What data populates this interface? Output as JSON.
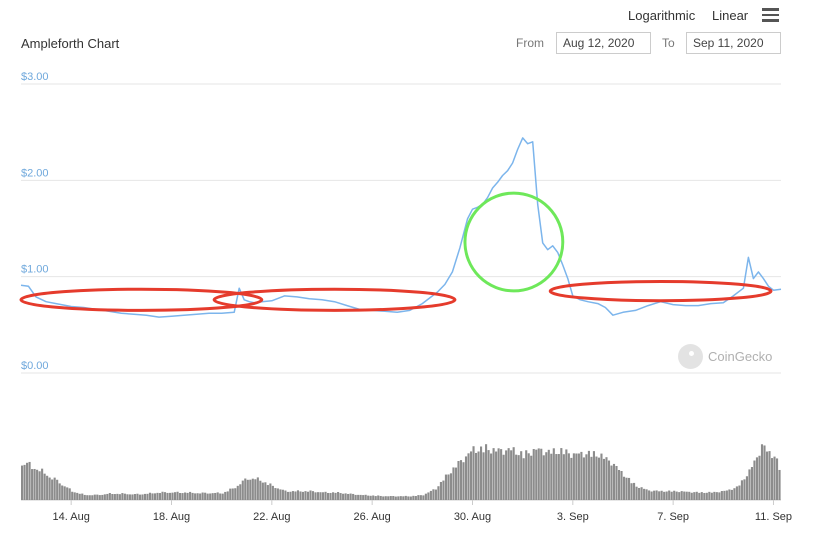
{
  "header": {
    "title": "Ampleforth Chart",
    "scale_log_label": "Logarithmic",
    "scale_linear_label": "Linear",
    "menu_icon": "hamburger-menu-icon"
  },
  "range": {
    "from_label": "From",
    "from_value": "Aug 12, 2020",
    "to_label": "To",
    "to_value": "Sep 11, 2020"
  },
  "watermark": {
    "text": "CoinGecko",
    "icon": "coingecko-logo-icon"
  },
  "colors": {
    "price_line": "#7cb5ec",
    "volume": "#8c8c8c",
    "grid": "#e6e6e6",
    "red_annotation": "#e53b2c",
    "green_annotation": "#6ee85a"
  },
  "chart_data": {
    "type": "line",
    "title": "Ampleforth Chart",
    "y_scale": "linear",
    "ylim": [
      0,
      3
    ],
    "y_ticks": [
      "$3.00",
      "$2.00",
      "$1.00",
      "$0.00"
    ],
    "y_tick_values": [
      3,
      2,
      1,
      0
    ],
    "x_ticks": [
      "14. Aug",
      "18. Aug",
      "22. Aug",
      "26. Aug",
      "30. Aug",
      "3. Sep",
      "7. Sep",
      "11. Sep"
    ],
    "x_tick_days": [
      2,
      6,
      10,
      14,
      18,
      22,
      26,
      30
    ],
    "x_range_days": [
      0.0,
      30.3
    ],
    "grid": true,
    "series": [
      {
        "x": [
          0.0,
          0.3,
          0.6,
          1.0,
          1.4,
          2.0,
          2.5,
          3.0,
          3.5,
          4.0,
          4.5,
          5.0,
          5.5,
          6.0,
          6.5,
          7.0,
          7.5,
          8.0,
          8.5,
          8.7,
          8.9,
          9.1,
          9.3,
          9.6,
          10.0,
          10.5,
          11.0,
          11.5,
          12.0,
          12.5,
          13.0,
          13.5,
          14.0,
          14.5,
          15.0,
          15.5,
          16.0,
          16.3,
          16.6,
          16.9,
          17.2,
          17.5,
          17.8,
          18.0,
          18.2,
          18.4,
          18.6,
          18.8,
          19.0,
          19.2,
          19.4,
          19.6,
          19.8,
          20.0,
          20.2,
          20.4,
          20.6,
          20.8,
          21.0,
          21.2,
          21.4,
          21.6,
          21.8,
          22.0,
          22.3,
          22.6,
          23.0,
          23.3,
          23.6,
          24.0,
          24.5,
          25.0,
          25.5,
          26.0,
          26.5,
          27.0,
          27.5,
          28.0,
          28.4,
          28.8,
          29.0,
          29.2,
          29.4,
          29.6,
          29.8,
          30.0,
          30.3
        ],
        "y": [
          0.91,
          0.9,
          0.79,
          0.74,
          0.72,
          0.69,
          0.68,
          0.66,
          0.64,
          0.62,
          0.61,
          0.6,
          0.58,
          0.59,
          0.6,
          0.61,
          0.62,
          0.62,
          0.63,
          0.88,
          0.76,
          0.74,
          0.73,
          0.74,
          0.75,
          0.8,
          0.79,
          0.77,
          0.76,
          0.74,
          0.7,
          0.66,
          0.65,
          0.64,
          0.63,
          0.65,
          0.72,
          0.78,
          0.84,
          0.92,
          1.05,
          1.3,
          1.6,
          1.7,
          1.72,
          1.75,
          1.82,
          1.92,
          1.98,
          2.05,
          2.1,
          2.18,
          2.32,
          2.44,
          2.38,
          2.4,
          1.75,
          1.35,
          1.28,
          1.32,
          1.25,
          1.12,
          0.98,
          0.8,
          0.76,
          0.74,
          0.72,
          0.68,
          0.6,
          0.63,
          0.65,
          0.7,
          0.74,
          0.71,
          0.7,
          0.7,
          0.72,
          0.73,
          0.8,
          0.88,
          1.2,
          0.98,
          1.05,
          0.98,
          0.9,
          0.86,
          0.87
        ]
      }
    ],
    "volume": {
      "x": [
        0.0,
        0.5,
        1.0,
        1.5,
        2.0,
        2.5,
        3.0,
        3.5,
        4.0,
        4.5,
        5.0,
        5.5,
        6.0,
        6.5,
        7.0,
        7.5,
        8.0,
        8.5,
        9.0,
        9.5,
        10.0,
        10.5,
        11.0,
        11.5,
        12.0,
        12.5,
        13.0,
        13.5,
        14.0,
        14.5,
        15.0,
        15.5,
        16.0,
        16.5,
        17.0,
        17.5,
        18.0,
        18.5,
        19.0,
        19.5,
        20.0,
        20.5,
        21.0,
        21.5,
        22.0,
        22.5,
        23.0,
        23.5,
        24.0,
        24.5,
        25.0,
        25.5,
        26.0,
        26.5,
        27.0,
        27.5,
        28.0,
        28.5,
        29.0,
        29.5,
        30.0,
        30.3
      ],
      "level": [
        0.6,
        0.52,
        0.4,
        0.28,
        0.14,
        0.08,
        0.08,
        0.1,
        0.1,
        0.09,
        0.1,
        0.12,
        0.12,
        0.12,
        0.11,
        0.11,
        0.11,
        0.2,
        0.35,
        0.32,
        0.22,
        0.14,
        0.14,
        0.14,
        0.12,
        0.12,
        0.1,
        0.08,
        0.07,
        0.06,
        0.06,
        0.06,
        0.08,
        0.18,
        0.42,
        0.62,
        0.8,
        0.82,
        0.78,
        0.8,
        0.72,
        0.8,
        0.76,
        0.78,
        0.72,
        0.74,
        0.72,
        0.6,
        0.4,
        0.22,
        0.15,
        0.14,
        0.14,
        0.13,
        0.12,
        0.12,
        0.14,
        0.2,
        0.45,
        0.85,
        0.7,
        0.42
      ]
    },
    "annotations": [
      {
        "shape": "ellipse",
        "color": "red",
        "x_center_day": 4.8,
        "x_half_width_days": 4.8,
        "y_center": 0.76,
        "y_half_height": 0.11
      },
      {
        "shape": "ellipse",
        "color": "red",
        "x_center_day": 12.5,
        "x_half_width_days": 4.8,
        "y_center": 0.76,
        "y_half_height": 0.11
      },
      {
        "shape": "circle",
        "color": "green",
        "x_center_day": 19.65,
        "radius_days": 1.95,
        "y_center": 1.36
      },
      {
        "shape": "ellipse",
        "color": "red",
        "x_center_day": 25.5,
        "x_half_width_days": 4.4,
        "y_center": 0.85,
        "y_half_height": 0.1
      }
    ]
  }
}
